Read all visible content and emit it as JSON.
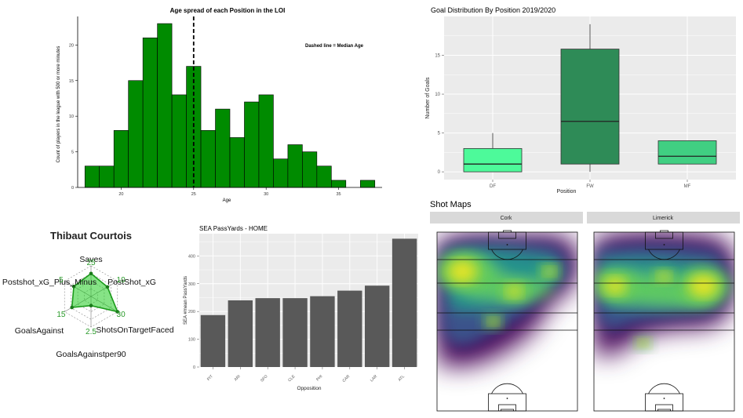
{
  "chart_data": [
    {
      "type": "bar",
      "id": "histogram",
      "title": "Age spread of each Position in the LOI",
      "xlabel": "Age",
      "ylabel": "Count of players in the league with 500 or more minutes",
      "annotation": "Dashed line = Median Age",
      "median": 25,
      "bin_start": 17.5,
      "bin_width": 1,
      "counts": [
        3,
        3,
        8,
        15,
        21,
        23,
        13,
        17,
        8,
        11,
        7,
        12,
        13,
        4,
        6,
        5,
        3,
        1,
        0,
        1
      ],
      "xlim": [
        17,
        38
      ],
      "ylim": [
        0,
        24
      ],
      "x_ticks": [
        "20",
        "25",
        "30",
        "35"
      ],
      "y_ticks": [
        "0",
        "5",
        "10",
        "15",
        "20"
      ],
      "bar_color": "#008b00"
    },
    {
      "type": "box",
      "id": "boxplot",
      "title": "Goal Distribution By Position 2019/2020",
      "xlabel": "Position",
      "ylabel": "Number of Goals",
      "ylim": [
        -1,
        20
      ],
      "y_ticks": [
        "0",
        "5",
        "10",
        "15"
      ],
      "boxes": [
        {
          "category": "DF",
          "min": 0,
          "q1": 0,
          "median": 1,
          "q3": 3,
          "max": 5,
          "color": "#4dfa9a"
        },
        {
          "category": "FW",
          "min": 0,
          "q1": 1,
          "median": 6.5,
          "q3": 15.8,
          "max": 19,
          "color": "#2e8b57"
        },
        {
          "category": "MF",
          "min": 1,
          "q1": 1,
          "median": 2,
          "q3": 4,
          "max": 4,
          "color": "#40cf82"
        }
      ]
    },
    {
      "type": "radar",
      "id": "radar",
      "title": "Thibaut Courtois",
      "axes": [
        "Saves",
        "PostShot_xG",
        "ShotsOnTargetFaced",
        "GoalsAgainstper90",
        "GoalsAgainst",
        "Postshot_xG_Plus_Minus"
      ],
      "axis_max": [
        25,
        10,
        30,
        2.5,
        15,
        5
      ],
      "max_labels": [
        "25",
        "10",
        "30",
        "2.5",
        "15",
        "5"
      ],
      "values": [
        0.75,
        0.62,
        1.0,
        0.3,
        0.72,
        0.65
      ],
      "fill_color": "#22cc22"
    },
    {
      "type": "bar",
      "id": "passbars",
      "title": "SEA PassYards - HOME",
      "xlabel": "Opposition",
      "ylabel": "SEA #mean PassYards",
      "categories": [
        "PIT",
        "ARI",
        "SFO",
        "CLE",
        "PHI",
        "CAR",
        "LAR",
        "ATL"
      ],
      "values": [
        187,
        240,
        248,
        248,
        255,
        275,
        293,
        462
      ],
      "ylim": [
        0,
        480
      ],
      "y_ticks": [
        "0",
        "100",
        "200",
        "300",
        "400"
      ],
      "bar_color": "#595959"
    },
    {
      "type": "heatmap",
      "id": "shotmaps",
      "title": "Shot Maps",
      "panels": [
        {
          "label": "Cork",
          "hotspots": [
            {
              "pos": [
                0.18,
                0.22
              ],
              "intensity": 1.0
            },
            {
              "pos": [
                0.55,
                0.33
              ],
              "intensity": 0.55
            },
            {
              "pos": [
                0.8,
                0.22
              ],
              "intensity": 0.4
            },
            {
              "pos": [
                0.4,
                0.5
              ],
              "intensity": 0.35
            }
          ]
        },
        {
          "label": "Limerick",
          "hotspots": [
            {
              "pos": [
                0.15,
                0.3
              ],
              "intensity": 0.75
            },
            {
              "pos": [
                0.78,
                0.3
              ],
              "intensity": 1.0
            },
            {
              "pos": [
                0.5,
                0.25
              ],
              "intensity": 0.45
            },
            {
              "pos": [
                0.35,
                0.62
              ],
              "intensity": 0.3
            }
          ]
        }
      ]
    }
  ]
}
